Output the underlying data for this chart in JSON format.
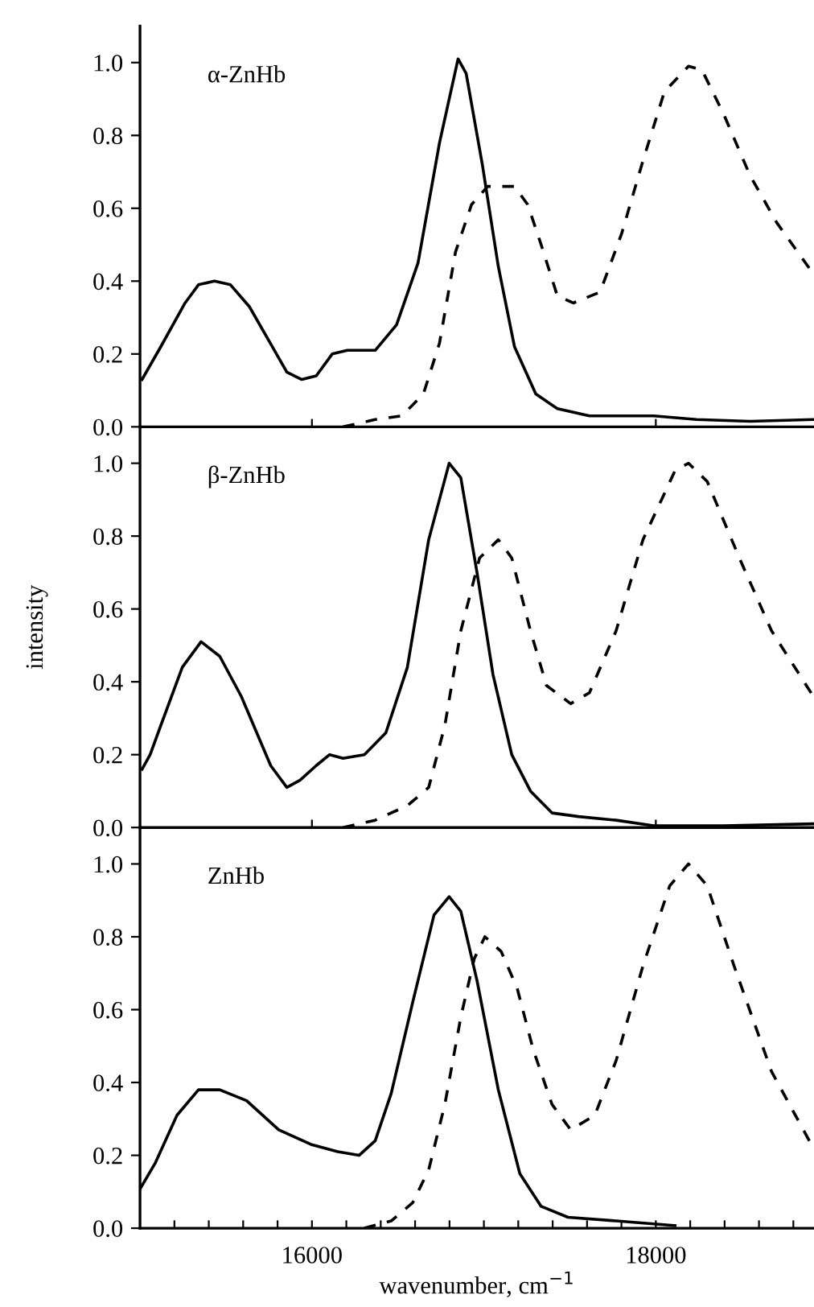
{
  "chart_data": [
    {
      "type": "line",
      "annotations": [
        "α-ZnHb"
      ],
      "xlim": [
        15000,
        18920
      ],
      "ylim": [
        0,
        1.1
      ],
      "tick_labels": "y",
      "xticks": [
        {
          "value": 16000,
          "label": null
        },
        {
          "value": 18000,
          "label": null
        }
      ],
      "yticks": [
        {
          "value": 0,
          "label": "0.0"
        },
        {
          "value": 0.2,
          "label": "0.2"
        },
        {
          "value": 0.4,
          "label": "0.4"
        },
        {
          "value": 0.6,
          "label": "0.6"
        },
        {
          "value": 0.8,
          "label": "0.8"
        },
        {
          "value": 1.0,
          "label": "1.0"
        }
      ],
      "series": [
        {
          "color": "#000000",
          "line_style": "solid",
          "x": [
            15012,
            15121,
            15262,
            15340,
            15433,
            15526,
            15636,
            15745,
            15854,
            15941,
            16025,
            16118,
            16206,
            16259,
            16368,
            16492,
            16617,
            16742,
            16850,
            16897,
            16991,
            17084,
            17178,
            17302,
            17427,
            17614,
            17988,
            18237,
            18548,
            18916
          ],
          "values": [
            0.13,
            0.22,
            0.34,
            0.39,
            0.4,
            0.39,
            0.33,
            0.24,
            0.15,
            0.13,
            0.14,
            0.2,
            0.21,
            0.21,
            0.21,
            0.28,
            0.45,
            0.78,
            1.01,
            0.97,
            0.72,
            0.44,
            0.22,
            0.09,
            0.05,
            0.03,
            0.03,
            0.02,
            0.015,
            0.02
          ]
        },
        {
          "color": "#000000",
          "line_style": "dashed",
          "x": [
            16181,
            16368,
            16523,
            16648,
            16742,
            16835,
            16928,
            17022,
            17178,
            17255,
            17333,
            17427,
            17520,
            17676,
            17801,
            17925,
            18050,
            18190,
            18268,
            18393,
            18548,
            18704,
            18916
          ],
          "values": [
            0.0,
            0.02,
            0.03,
            0.09,
            0.23,
            0.48,
            0.61,
            0.66,
            0.66,
            0.61,
            0.5,
            0.36,
            0.34,
            0.37,
            0.53,
            0.73,
            0.92,
            0.99,
            0.98,
            0.86,
            0.69,
            0.56,
            0.42
          ]
        }
      ]
    },
    {
      "type": "line",
      "annotations": [
        "β-ZnHb"
      ],
      "ylabel": "intensity",
      "xlim": [
        15000,
        18920
      ],
      "ylim": [
        0,
        1.1
      ],
      "tick_labels": "y",
      "xticks": [
        {
          "value": 16000,
          "label": null
        },
        {
          "value": 18000,
          "label": null
        }
      ],
      "yticks": [
        {
          "value": 0,
          "label": "0.0"
        },
        {
          "value": 0.2,
          "label": "0.2"
        },
        {
          "value": 0.4,
          "label": "0.4"
        },
        {
          "value": 0.6,
          "label": "0.6"
        },
        {
          "value": 0.8,
          "label": "0.8"
        },
        {
          "value": 1.0,
          "label": "1.0"
        }
      ],
      "series": [
        {
          "color": "#000000",
          "line_style": "solid",
          "x": [
            15012,
            15059,
            15121,
            15246,
            15355,
            15464,
            15589,
            15760,
            15854,
            15931,
            16025,
            16103,
            16181,
            16305,
            16430,
            16555,
            16679,
            16798,
            16866,
            16960,
            17053,
            17162,
            17271,
            17396,
            17551,
            17769,
            17988,
            18393,
            18916
          ],
          "values": [
            0.16,
            0.2,
            0.28,
            0.44,
            0.51,
            0.47,
            0.36,
            0.17,
            0.11,
            0.13,
            0.17,
            0.2,
            0.19,
            0.2,
            0.26,
            0.44,
            0.79,
            1.0,
            0.96,
            0.7,
            0.42,
            0.2,
            0.1,
            0.04,
            0.03,
            0.02,
            0.005,
            0.005,
            0.01
          ]
        },
        {
          "color": "#000000",
          "line_style": "dashed",
          "x": [
            16181,
            16368,
            16555,
            16679,
            16773,
            16866,
            16975,
            17084,
            17162,
            17271,
            17364,
            17505,
            17614,
            17769,
            17925,
            18112,
            18190,
            18299,
            18486,
            18673,
            18916
          ],
          "values": [
            0.0,
            0.02,
            0.06,
            0.11,
            0.28,
            0.54,
            0.74,
            0.79,
            0.74,
            0.54,
            0.39,
            0.34,
            0.37,
            0.54,
            0.79,
            0.98,
            1.0,
            0.95,
            0.74,
            0.54,
            0.36
          ]
        }
      ]
    },
    {
      "type": "line",
      "annotations": [
        "ZnHb"
      ],
      "xlabel": "wavenumber, cm$^{−1}$",
      "xlim": [
        15000,
        18920
      ],
      "ylim": [
        0,
        1.1
      ],
      "xticks": [
        {
          "value": 15200,
          "label": null
        },
        {
          "value": 15400,
          "label": null
        },
        {
          "value": 15600,
          "label": null
        },
        {
          "value": 15800,
          "label": null
        },
        16000,
        {
          "value": 16200,
          "label": null
        },
        {
          "value": 16400,
          "label": null
        },
        {
          "value": 16600,
          "label": null
        },
        {
          "value": 16800,
          "label": null
        },
        {
          "value": 17000,
          "label": null
        },
        {
          "value": 17200,
          "label": null
        },
        {
          "value": 17400,
          "label": null
        },
        {
          "value": 17600,
          "label": null
        },
        {
          "value": 17800,
          "label": null
        },
        18000,
        {
          "value": 18200,
          "label": null
        },
        {
          "value": 18400,
          "label": null
        },
        {
          "value": 18600,
          "label": null
        },
        {
          "value": 18800,
          "label": null
        }
      ],
      "yticks": [
        {
          "value": 0,
          "label": "0.0"
        },
        {
          "value": 0.2,
          "label": "0.2"
        },
        {
          "value": 0.4,
          "label": "0.4"
        },
        {
          "value": 0.6,
          "label": "0.6"
        },
        {
          "value": 0.8,
          "label": "0.8"
        },
        {
          "value": 1.0,
          "label": "1.0"
        }
      ],
      "series": [
        {
          "color": "#000000",
          "line_style": "solid",
          "x": [
            15003,
            15090,
            15215,
            15340,
            15464,
            15620,
            15807,
            15994,
            16150,
            16274,
            16368,
            16461,
            16586,
            16710,
            16798,
            16866,
            16960,
            17084,
            17209,
            17333,
            17489,
            17769,
            18112
          ],
          "values": [
            0.11,
            0.18,
            0.31,
            0.38,
            0.38,
            0.35,
            0.27,
            0.23,
            0.21,
            0.2,
            0.24,
            0.37,
            0.62,
            0.86,
            0.91,
            0.87,
            0.68,
            0.38,
            0.15,
            0.06,
            0.03,
            0.02,
            0.007
          ]
        },
        {
          "color": "#000000",
          "line_style": "dashed",
          "x": [
            16305,
            16461,
            16586,
            16679,
            16773,
            16866,
            16944,
            17006,
            17100,
            17193,
            17287,
            17396,
            17505,
            17645,
            17769,
            17925,
            18081,
            18190,
            18299,
            18455,
            18673,
            18916
          ],
          "values": [
            0.0,
            0.02,
            0.07,
            0.16,
            0.34,
            0.58,
            0.74,
            0.8,
            0.76,
            0.66,
            0.49,
            0.34,
            0.27,
            0.31,
            0.46,
            0.72,
            0.94,
            1.0,
            0.94,
            0.72,
            0.43,
            0.22
          ]
        }
      ]
    }
  ]
}
